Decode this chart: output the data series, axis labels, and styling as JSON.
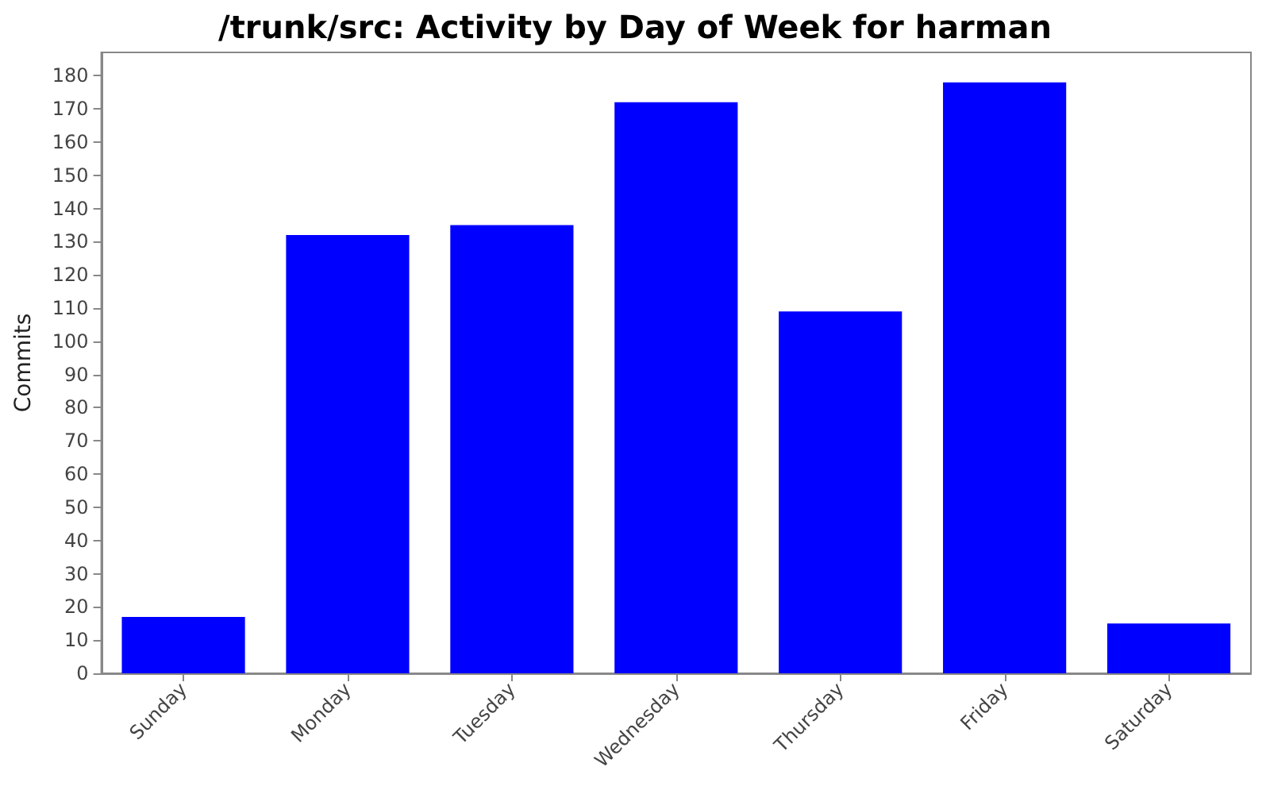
{
  "chart_data": {
    "type": "bar",
    "title": "/trunk/src: Activity by Day of Week for harman",
    "ylabel": "Commits",
    "categories": [
      "Sunday",
      "Monday",
      "Tuesday",
      "Wednesday",
      "Thursday",
      "Friday",
      "Saturday"
    ],
    "values": [
      17,
      132,
      135,
      172,
      109,
      178,
      15
    ],
    "color": "#0000ff",
    "ylim": [
      0,
      187
    ],
    "yticks": [
      0,
      10,
      20,
      30,
      40,
      50,
      60,
      70,
      80,
      90,
      100,
      110,
      120,
      130,
      140,
      150,
      160,
      170,
      180
    ],
    "grid": false
  }
}
